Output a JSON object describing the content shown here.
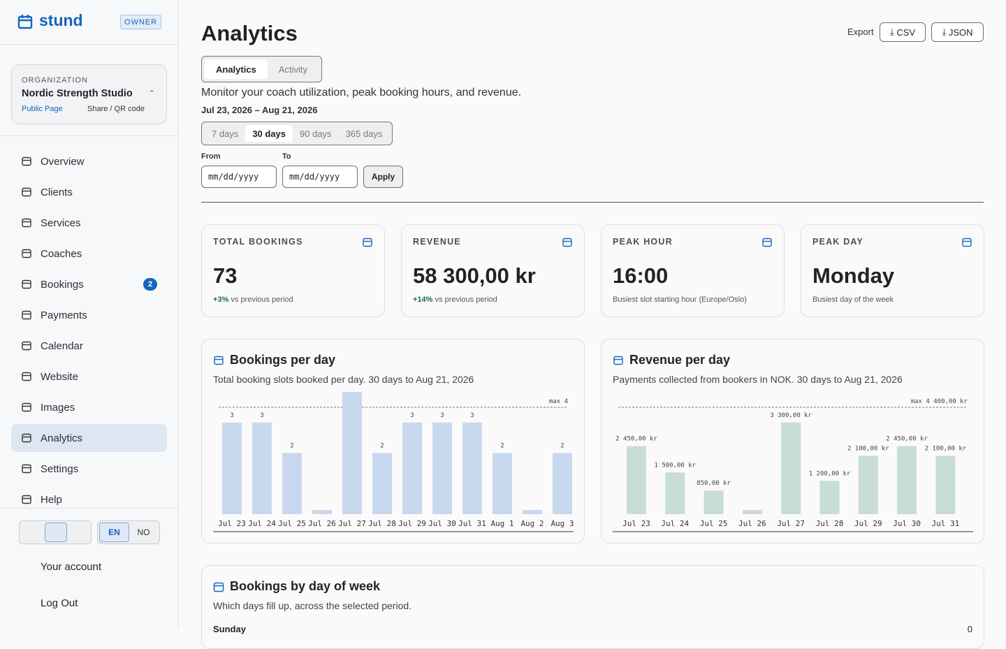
{
  "sidebar": {
    "brand": "stund",
    "role": "OWNER",
    "org_label": "ORGANIZATION",
    "org_name": "Nordic Strength Studio",
    "public_page": "Public Page",
    "share": "Share / QR code",
    "nav": [
      {
        "label": "Overview"
      },
      {
        "label": "Clients"
      },
      {
        "label": "Services"
      },
      {
        "label": "Coaches"
      },
      {
        "label": "Bookings",
        "badge": 2
      },
      {
        "label": "Payments"
      },
      {
        "label": "Calendar"
      },
      {
        "label": "Website"
      },
      {
        "label": "Images"
      },
      {
        "label": "Analytics",
        "active": true
      },
      {
        "label": "Settings"
      },
      {
        "label": "Help"
      }
    ],
    "languages": [
      {
        "label": "EN",
        "selected": true
      },
      {
        "label": "NO"
      }
    ],
    "account": "Your account",
    "logout": "Log Out"
  },
  "header": {
    "title": "Analytics",
    "export_label": "Export",
    "export_buttons": [
      "CSV",
      "JSON"
    ]
  },
  "tabs": [
    {
      "label": "Analytics",
      "selected": true
    },
    {
      "label": "Activity"
    }
  ],
  "description": "Monitor your coach utilization, peak booking hours, and revenue.",
  "date_range": "Jul 23, 2026 – Aug 21, 2026",
  "ranges": [
    {
      "label": "7 days"
    },
    {
      "label": "30 days",
      "selected": true
    },
    {
      "label": "90 days"
    },
    {
      "label": "365 days"
    }
  ],
  "from_label": "From",
  "to_label": "To",
  "date_placeholder": "mm/dd/yyyy",
  "apply": "Apply",
  "stats": [
    {
      "label": "TOTAL BOOKINGS",
      "value": "73",
      "delta": "+3%",
      "note": "vs previous period"
    },
    {
      "label": "REVENUE",
      "value": "58 300,00 kr",
      "delta": "+14%",
      "note": "vs previous period"
    },
    {
      "label": "PEAK HOUR",
      "value": "16:00",
      "note": "Busiest slot starting hour (Europe/Oslo)"
    },
    {
      "label": "PEAK DAY",
      "value": "Monday",
      "note": "Busiest day of the week"
    }
  ],
  "chart_data": [
    {
      "type": "bar",
      "title": "Bookings per day",
      "subtitle": "Total booking slots booked per day. 30 days to Aug 21, 2026",
      "max_label": "max 4",
      "categories": [
        "Jul 23",
        "Jul 24",
        "Jul 25",
        "Jul 26",
        "Jul 27",
        "Jul 28",
        "Jul 29",
        "Jul 30",
        "Jul 31",
        "Aug 1",
        "Aug 2",
        "Aug 3"
      ],
      "values": [
        3,
        3,
        2,
        0,
        4,
        2,
        3,
        3,
        3,
        2,
        0,
        2
      ],
      "color": "#c8d8ee",
      "ylim": [
        0,
        4
      ]
    },
    {
      "type": "bar",
      "title": "Revenue per day",
      "subtitle": "Payments collected from bookers in NOK. 30 days to Aug 21, 2026",
      "max_label": "max 4 400,00 kr",
      "categories": [
        "Jul 23",
        "Jul 24",
        "Jul 25",
        "Jul 26",
        "Jul 27",
        "Jul 28",
        "Jul 29",
        "Jul 30",
        "Jul 31"
      ],
      "values": [
        2450,
        1500,
        850,
        0,
        3300,
        1200,
        2100,
        2450,
        2100
      ],
      "value_labels": [
        "2 450,00 kr",
        "1 500,00 kr",
        "850,00 kr",
        null,
        "3 300,00 kr",
        "1 200,00 kr",
        "2 100,00 kr",
        "2 450,00 kr",
        "2 100,00 kr"
      ],
      "color": "#c9ddd8",
      "ylim": [
        0,
        4400
      ]
    }
  ],
  "weekday": {
    "title": "Bookings by day of week",
    "subtitle": "Which days fill up, across the selected period.",
    "rows": [
      {
        "label": "Sunday",
        "value": "0"
      }
    ]
  }
}
